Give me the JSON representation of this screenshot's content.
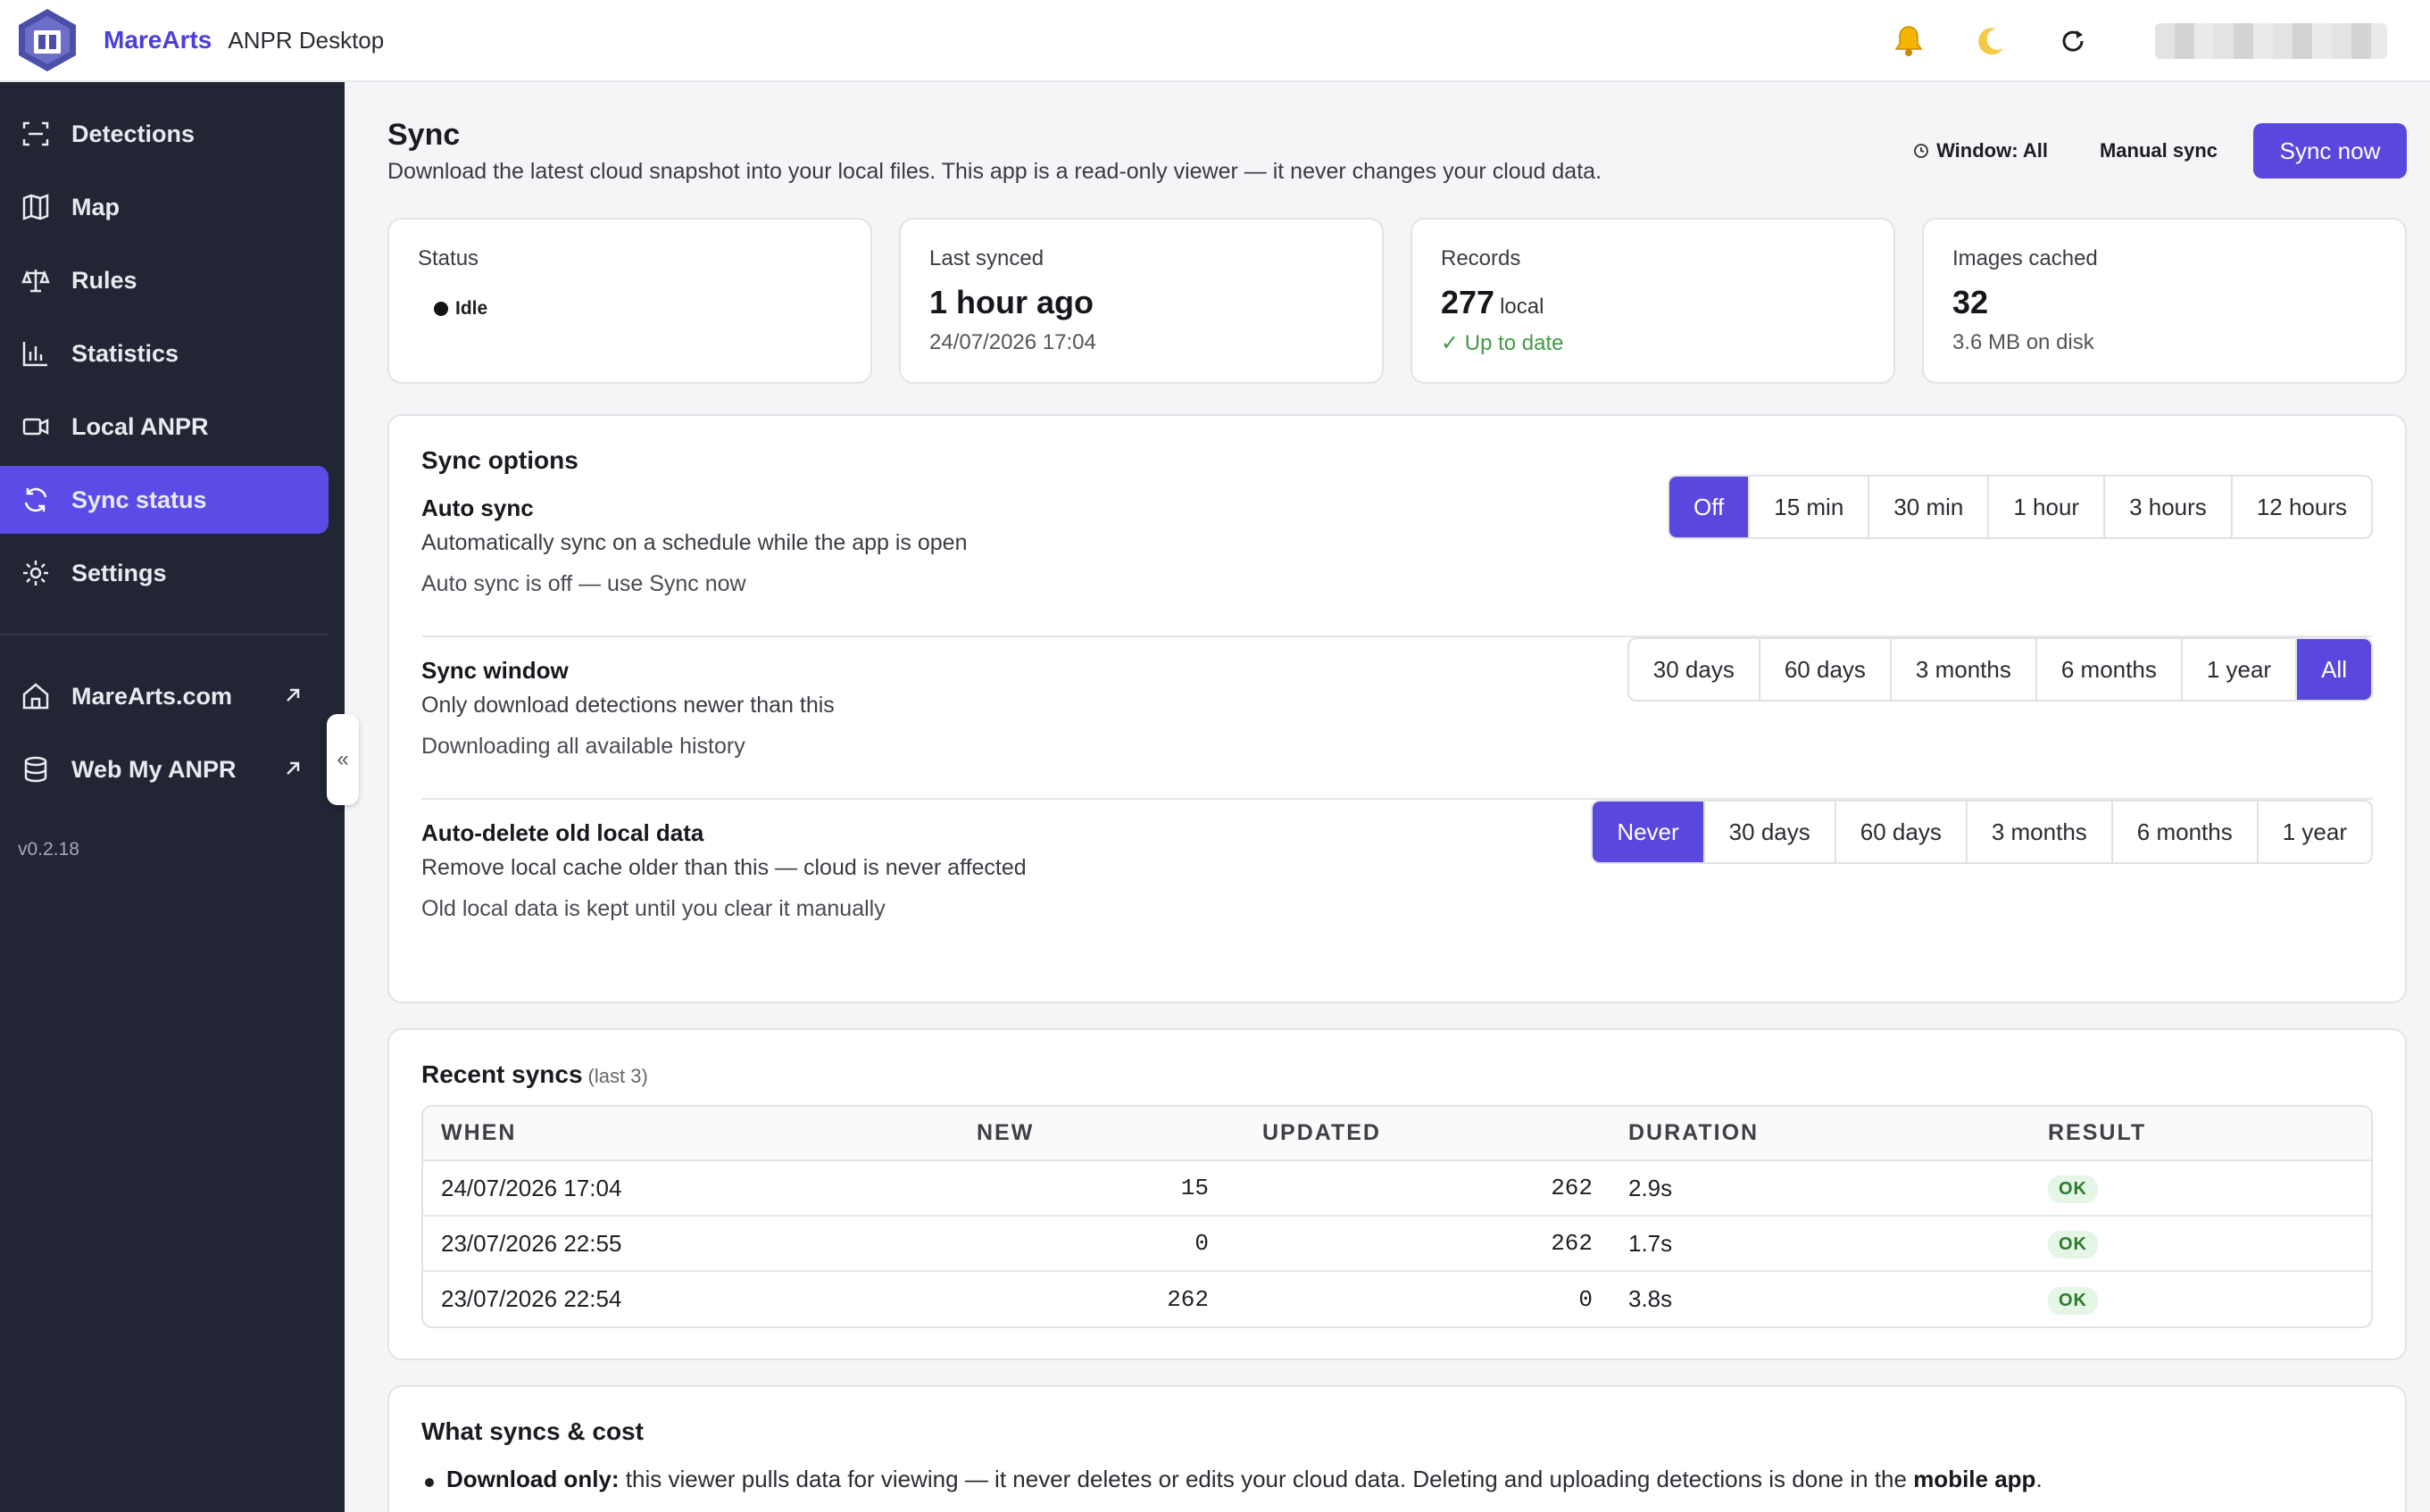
{
  "header": {
    "brand": "MareArts",
    "app_name": "ANPR Desktop",
    "icons": [
      "bell-icon",
      "moon-icon",
      "refresh-icon"
    ]
  },
  "sidebar": {
    "items": [
      {
        "label": "Detections",
        "icon": "scan-icon"
      },
      {
        "label": "Map",
        "icon": "map-icon"
      },
      {
        "label": "Rules",
        "icon": "scales-icon"
      },
      {
        "label": "Statistics",
        "icon": "bar-chart-icon"
      },
      {
        "label": "Local ANPR",
        "icon": "camera-icon"
      },
      {
        "label": "Sync status",
        "icon": "sync-icon",
        "active": true
      },
      {
        "label": "Settings",
        "icon": "gear-icon"
      }
    ],
    "links": [
      {
        "label": "MareArts.com",
        "icon": "home-icon"
      },
      {
        "label": "Web My ANPR",
        "icon": "database-icon"
      }
    ],
    "version": "v0.2.18",
    "collapse_label": "«"
  },
  "page": {
    "title": "Sync",
    "subtitle": "Download the latest cloud snapshot into your local files. This app is a read-only viewer — it never changes your cloud data.",
    "window_label": "Window: All",
    "manual_label": "Manual sync",
    "sync_button": "Sync now"
  },
  "cards": {
    "status": {
      "label": "Status",
      "value": "Idle"
    },
    "last_synced": {
      "label": "Last synced",
      "value": "1 hour ago",
      "meta": "24/07/2026 17:04"
    },
    "records": {
      "label": "Records",
      "value": "277",
      "unit": "local",
      "meta": "✓ Up to date"
    },
    "images": {
      "label": "Images cached",
      "value": "32",
      "meta": "3.6 MB on disk"
    }
  },
  "sync_options": {
    "title": "Sync options",
    "auto_sync": {
      "name": "Auto sync",
      "desc": "Automatically sync on a schedule while the app is open",
      "note": "Auto sync is off — use Sync now",
      "options": [
        "Off",
        "15 min",
        "30 min",
        "1 hour",
        "3 hours",
        "12 hours"
      ],
      "selected": 0
    },
    "window": {
      "name": "Sync window",
      "desc": "Only download detections newer than this",
      "note": "Downloading all available history",
      "options": [
        "30 days",
        "60 days",
        "3 months",
        "6 months",
        "1 year",
        "All"
      ],
      "selected": 5
    },
    "auto_delete": {
      "name": "Auto-delete old local data",
      "desc": "Remove local cache older than this — cloud is never affected",
      "note": "Old local data is kept until you clear it manually",
      "options": [
        "Never",
        "30 days",
        "60 days",
        "3 months",
        "6 months",
        "1 year"
      ],
      "selected": 0
    }
  },
  "recent": {
    "title": "Recent syncs",
    "subtitle": "(last 3)",
    "columns": [
      "WHEN",
      "NEW",
      "UPDATED",
      "DURATION",
      "RESULT"
    ],
    "rows": [
      {
        "when": "24/07/2026 17:04",
        "new": "15",
        "updated": "262",
        "duration": "2.9s",
        "result": "OK"
      },
      {
        "when": "23/07/2026 22:55",
        "new": "0",
        "updated": "262",
        "duration": "1.7s",
        "result": "OK"
      },
      {
        "when": "23/07/2026 22:54",
        "new": "262",
        "updated": "0",
        "duration": "3.8s",
        "result": "OK"
      }
    ]
  },
  "cost": {
    "title": "What syncs & cost",
    "item_lead": "Download only:",
    "item_text": " this viewer pulls data for viewing — it never deletes or edits your cloud data. Deleting and uploading detections is done in the ",
    "item_strong": "mobile app",
    "item_end": "."
  },
  "colors": {
    "accent": "#5a48de",
    "sidebar_bg": "#222533",
    "ok_green": "#3f9a42"
  }
}
